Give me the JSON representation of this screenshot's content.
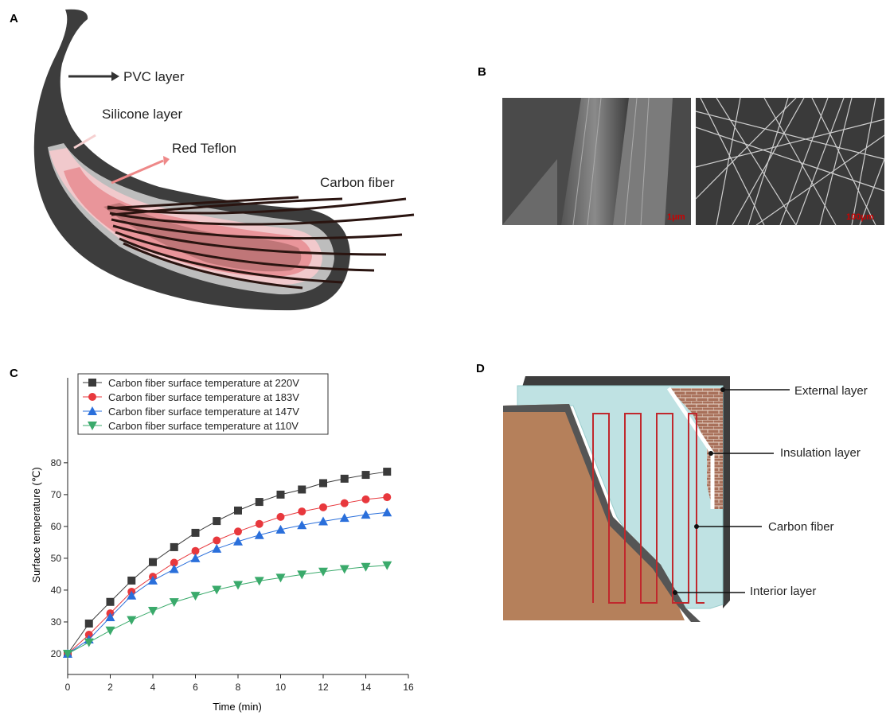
{
  "panels": {
    "a": {
      "label": "A",
      "labels": [
        "PVC layer",
        "Silicone layer",
        "Red Teflon",
        "Carbon fiber"
      ]
    },
    "b": {
      "label": "B",
      "scale_bars": [
        "1μm",
        "100μm"
      ]
    },
    "c": {
      "label": "C"
    },
    "d": {
      "label": "D",
      "labels": [
        "External layer",
        "Insulation layer",
        "Carbon fiber",
        "Interior layer"
      ]
    }
  },
  "chart_data": {
    "type": "line",
    "x_label": "Time (min)",
    "y_label": "Surface temperature (℃)",
    "x": [
      0,
      1,
      2,
      3,
      4,
      5,
      6,
      7,
      8,
      9,
      10,
      11,
      12,
      13,
      14,
      15
    ],
    "series": [
      {
        "name": "Carbon fiber surface temperature at 220V",
        "color": "#3a3a3a",
        "marker": "square",
        "values": [
          20,
          29.5,
          36.3,
          43,
          48.8,
          53.5,
          58,
          61.7,
          65,
          67.7,
          70,
          71.6,
          73.6,
          75,
          76.2,
          77.2
        ]
      },
      {
        "name": "Carbon fiber surface temperature at 183V",
        "color": "#e8383d",
        "marker": "circle",
        "values": [
          20,
          26,
          32.7,
          39.5,
          44.2,
          48.6,
          52.3,
          55.6,
          58.4,
          60.8,
          63,
          64.7,
          66,
          67.3,
          68.5,
          69.2
        ]
      },
      {
        "name": "Carbon fiber surface temperature at 147V",
        "color": "#2a6fdb",
        "marker": "triangle-up",
        "values": [
          20,
          24.5,
          31.5,
          38.3,
          43,
          46.6,
          50,
          53,
          55.3,
          57.3,
          59,
          60.4,
          61.6,
          62.7,
          63.7,
          64.4
        ]
      },
      {
        "name": "Carbon fiber surface temperature at 110V",
        "color": "#3aaa6b",
        "marker": "triangle-down",
        "values": [
          20,
          23.6,
          27.3,
          30.6,
          33.5,
          36.2,
          38.2,
          40.1,
          41.6,
          42.9,
          43.9,
          44.9,
          45.8,
          46.6,
          47.3,
          47.8
        ]
      }
    ],
    "xlim": [
      0,
      16
    ],
    "xticks": [
      0,
      2,
      4,
      6,
      8,
      10,
      12,
      14,
      16
    ],
    "ylim": [
      13.5,
      106.7
    ],
    "yticks": [
      20,
      30,
      40,
      50,
      60,
      70,
      80
    ],
    "legend": "top-left"
  }
}
